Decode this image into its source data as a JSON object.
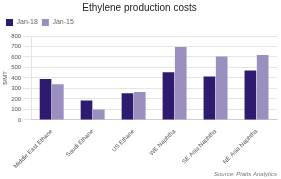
{
  "chart_data": {
    "type": "bar",
    "title": "Ethylene production costs",
    "ylabel": "$/MT",
    "annotation": "Source: Platts Analytics",
    "categories": [
      "Middle East Ethane",
      "Saudi Ethane",
      "US Ethane",
      "WE Naphtha",
      "SE Asia Naphtha",
      "NE Asia Naphtha"
    ],
    "series": [
      {
        "name": "Jan-18",
        "color": "#2e1a6e",
        "values": [
          390,
          185,
          255,
          455,
          415,
          470
        ]
      },
      {
        "name": "Jan-15",
        "color": "#9b8fc0",
        "values": [
          340,
          100,
          265,
          695,
          605,
          620
        ]
      }
    ],
    "ylim": [
      0,
      800
    ],
    "yticks": [
      0,
      100,
      200,
      300,
      400,
      500,
      600,
      700,
      800
    ],
    "grid": true,
    "legend": "upper left"
  }
}
